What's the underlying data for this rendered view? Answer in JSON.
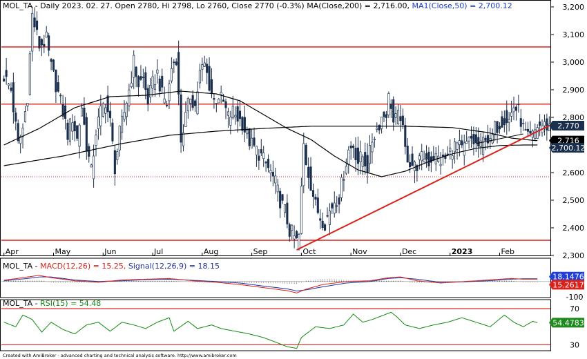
{
  "header": {
    "ticker": "MOL_TA",
    "text": "MOL_TA - Daily 2023. 02. 27. Open 2780, Hi 2798, Lo 2760, Close 2770 (-0.3%) MA(Close,200) = 2,716.00, ",
    "ma50_text": "MA1(Close,50) = 2,700.12"
  },
  "macd_header": {
    "prefix": "MOL_TA - ",
    "macd": "MACD(12,26) = 15.25, ",
    "signal": "Signal(12,26,9) = 18.15"
  },
  "rsi_header": {
    "prefix": "MOL_TA - ",
    "rsi": "RSI(15) = 54.48"
  },
  "footer": "Created with AmiBroker - advanced charting and technical analysis software. http://www.amibroker.com",
  "badges": {
    "close": "2,770",
    "ma200": "2,716",
    "ma50": "2,700.12",
    "signal": "18.1476",
    "macd": "15.2617",
    "rsi": "54.4783"
  },
  "colors": {
    "price": "#1b2f4e",
    "resistance": "#d9221b",
    "ma": "#000000",
    "macd": "#d9221b",
    "signal": "#2030a0",
    "rsi": "#118a11",
    "badge_dark": "#1b2f4e",
    "badge_blue": "#1f3fd8",
    "badge_red": "#d9221b",
    "badge_green": "#1c8a1c"
  },
  "chart_data": [
    {
      "type": "candlestick",
      "title": "MOL_TA - Daily",
      "ylim": [
        2300,
        3220
      ],
      "y_ticks": [
        {
          "value": 3200,
          "label": "3,200"
        },
        {
          "value": 3100,
          "label": "3,100"
        },
        {
          "value": 3000,
          "label": "3,000"
        },
        {
          "value": 2900,
          "label": "2,900"
        },
        {
          "value": 2800,
          "label": "2,800"
        },
        {
          "value": 2700,
          "label": "2,700"
        },
        {
          "value": 2600,
          "label": "2,600"
        },
        {
          "value": 2500,
          "label": "2,500"
        },
        {
          "value": 2400,
          "label": "2,400"
        },
        {
          "value": 2300,
          "label": "2,300"
        }
      ],
      "x_labels": [
        {
          "i": 0,
          "label": "Apr",
          "bold": false
        },
        {
          "i": 21,
          "label": "May",
          "bold": false
        },
        {
          "i": 42,
          "label": "Jun",
          "bold": false
        },
        {
          "i": 63,
          "label": "Jul",
          "bold": false
        },
        {
          "i": 84,
          "label": "Aug",
          "bold": false
        },
        {
          "i": 105,
          "label": "Sep",
          "bold": false
        },
        {
          "i": 126,
          "label": "Oct",
          "bold": false
        },
        {
          "i": 147,
          "label": "Nov",
          "bold": false
        },
        {
          "i": 168,
          "label": "Dec",
          "bold": false
        },
        {
          "i": 189,
          "label": "2023",
          "bold": true
        },
        {
          "i": 210,
          "label": "Feb",
          "bold": false
        }
      ],
      "n_bars": 232,
      "close_anchors": [
        [
          0,
          2950
        ],
        [
          3,
          2900
        ],
        [
          6,
          2700
        ],
        [
          8,
          2760
        ],
        [
          10,
          2880
        ],
        [
          12,
          3170
        ],
        [
          15,
          3060
        ],
        [
          18,
          3080
        ],
        [
          20,
          2980
        ],
        [
          22,
          2920
        ],
        [
          25,
          2820
        ],
        [
          27,
          2740
        ],
        [
          29,
          2800
        ],
        [
          31,
          2720
        ],
        [
          33,
          2840
        ],
        [
          35,
          2700
        ],
        [
          37,
          2600
        ],
        [
          39,
          2750
        ],
        [
          41,
          2820
        ],
        [
          43,
          2860
        ],
        [
          45,
          2780
        ],
        [
          47,
          2620
        ],
        [
          49,
          2740
        ],
        [
          51,
          2820
        ],
        [
          53,
          2900
        ],
        [
          55,
          3000
        ],
        [
          57,
          2920
        ],
        [
          59,
          2940
        ],
        [
          61,
          2860
        ],
        [
          63,
          2920
        ],
        [
          65,
          2960
        ],
        [
          67,
          2880
        ],
        [
          69,
          2850
        ],
        [
          71,
          2980
        ],
        [
          73,
          3020
        ],
        [
          75,
          2720
        ],
        [
          77,
          2800
        ],
        [
          79,
          2880
        ],
        [
          81,
          2840
        ],
        [
          83,
          2960
        ],
        [
          85,
          2990
        ],
        [
          87,
          2920
        ],
        [
          89,
          2860
        ],
        [
          91,
          2880
        ],
        [
          93,
          2850
        ],
        [
          95,
          2800
        ],
        [
          97,
          2820
        ],
        [
          99,
          2800
        ],
        [
          101,
          2780
        ],
        [
          103,
          2730
        ],
        [
          105,
          2700
        ],
        [
          107,
          2680
        ],
        [
          109,
          2660
        ],
        [
          111,
          2630
        ],
        [
          113,
          2600
        ],
        [
          115,
          2560
        ],
        [
          117,
          2500
        ],
        [
          119,
          2460
        ],
        [
          121,
          2390
        ],
        [
          122,
          2380
        ],
        [
          124,
          2350
        ],
        [
          125,
          2370
        ],
        [
          127,
          2700
        ],
        [
          128,
          2640
        ],
        [
          130,
          2560
        ],
        [
          132,
          2480
        ],
        [
          134,
          2440
        ],
        [
          136,
          2420
        ],
        [
          138,
          2460
        ],
        [
          140,
          2500
        ],
        [
          142,
          2510
        ],
        [
          144,
          2600
        ],
        [
          146,
          2680
        ],
        [
          148,
          2700
        ],
        [
          150,
          2640
        ],
        [
          152,
          2660
        ],
        [
          154,
          2620
        ],
        [
          156,
          2720
        ],
        [
          158,
          2760
        ],
        [
          160,
          2800
        ],
        [
          162,
          2820
        ],
        [
          163,
          2870
        ],
        [
          164,
          2850
        ],
        [
          165,
          2780
        ],
        [
          166,
          2790
        ],
        [
          168,
          2810
        ],
        [
          170,
          2680
        ],
        [
          172,
          2640
        ],
        [
          174,
          2620
        ],
        [
          176,
          2640
        ],
        [
          178,
          2660
        ],
        [
          180,
          2640
        ],
        [
          182,
          2660
        ],
        [
          184,
          2650
        ],
        [
          186,
          2640
        ],
        [
          188,
          2660
        ],
        [
          190,
          2690
        ],
        [
          192,
          2700
        ],
        [
          194,
          2680
        ],
        [
          196,
          2700
        ],
        [
          198,
          2720
        ],
        [
          200,
          2700
        ],
        [
          202,
          2690
        ],
        [
          204,
          2740
        ],
        [
          206,
          2700
        ],
        [
          208,
          2760
        ],
        [
          210,
          2780
        ],
        [
          212,
          2800
        ],
        [
          214,
          2790
        ],
        [
          216,
          2840
        ],
        [
          218,
          2820
        ],
        [
          220,
          2760
        ],
        [
          222,
          2720
        ],
        [
          224,
          2730
        ],
        [
          226,
          2770
        ],
        [
          231,
          2770
        ]
      ],
      "ma200_anchors": [
        [
          0,
          2625
        ],
        [
          25,
          2660
        ],
        [
          50,
          2705
        ],
        [
          70,
          2735
        ],
        [
          90,
          2750
        ],
        [
          110,
          2760
        ],
        [
          130,
          2768
        ],
        [
          150,
          2768
        ],
        [
          170,
          2768
        ],
        [
          190,
          2763
        ],
        [
          205,
          2745
        ],
        [
          215,
          2725
        ],
        [
          225,
          2716
        ],
        [
          231,
          2716
        ]
      ],
      "ma50_anchors": [
        [
          0,
          2700
        ],
        [
          15,
          2760
        ],
        [
          30,
          2835
        ],
        [
          45,
          2875
        ],
        [
          60,
          2880
        ],
        [
          75,
          2895
        ],
        [
          90,
          2885
        ],
        [
          100,
          2860
        ],
        [
          110,
          2810
        ],
        [
          120,
          2760
        ],
        [
          130,
          2720
        ],
        [
          140,
          2660
        ],
        [
          150,
          2610
        ],
        [
          160,
          2585
        ],
        [
          170,
          2605
        ],
        [
          180,
          2640
        ],
        [
          190,
          2668
        ],
        [
          200,
          2688
        ],
        [
          210,
          2698
        ],
        [
          220,
          2700
        ],
        [
          231,
          2700
        ]
      ],
      "resistance_lines": [
        3055,
        2848
      ],
      "support_lines": [
        2355
      ],
      "dotted_line": 2585,
      "trendline": [
        [
          124,
          2320
        ],
        [
          231,
          2770
        ]
      ],
      "black_trendline": [
        [
          200,
          2705
        ],
        [
          220,
          2740
        ]
      ]
    },
    {
      "type": "line",
      "title": "MACD(12,26)",
      "ylim": [
        -105,
        130
      ],
      "y_ticks": [
        {
          "value": 0,
          "label": "0"
        },
        {
          "value": -100,
          "label": "-100"
        }
      ],
      "series": [
        {
          "name": "MACD(12,26)",
          "anchors": [
            [
              0,
              8
            ],
            [
              10,
              30
            ],
            [
              15,
              40
            ],
            [
              20,
              25
            ],
            [
              30,
              5
            ],
            [
              40,
              -5
            ],
            [
              50,
              10
            ],
            [
              60,
              15
            ],
            [
              70,
              20
            ],
            [
              80,
              5
            ],
            [
              90,
              -5
            ],
            [
              100,
              -20
            ],
            [
              110,
              -40
            ],
            [
              120,
              -60
            ],
            [
              124,
              -75
            ],
            [
              128,
              -50
            ],
            [
              135,
              -20
            ],
            [
              145,
              0
            ],
            [
              155,
              5
            ],
            [
              163,
              25
            ],
            [
              168,
              30
            ],
            [
              175,
              5
            ],
            [
              185,
              -10
            ],
            [
              195,
              0
            ],
            [
              205,
              10
            ],
            [
              215,
              20
            ],
            [
              220,
              15
            ],
            [
              226,
              15.25
            ]
          ]
        },
        {
          "name": "Signal(12,26,9)",
          "anchors": [
            [
              0,
              5
            ],
            [
              10,
              20
            ],
            [
              15,
              30
            ],
            [
              20,
              30
            ],
            [
              30,
              10
            ],
            [
              40,
              0
            ],
            [
              50,
              5
            ],
            [
              60,
              12
            ],
            [
              70,
              15
            ],
            [
              80,
              8
            ],
            [
              90,
              0
            ],
            [
              100,
              -10
            ],
            [
              110,
              -30
            ],
            [
              120,
              -48
            ],
            [
              124,
              -62
            ],
            [
              128,
              -55
            ],
            [
              135,
              -35
            ],
            [
              145,
              -10
            ],
            [
              155,
              0
            ],
            [
              163,
              20
            ],
            [
              168,
              25
            ],
            [
              175,
              15
            ],
            [
              185,
              -5
            ],
            [
              195,
              -2
            ],
            [
              205,
              5
            ],
            [
              215,
              15
            ],
            [
              220,
              18
            ],
            [
              226,
              18.15
            ]
          ]
        }
      ],
      "last_values": {
        "signal": 18.1476,
        "macd": 15.2617
      }
    },
    {
      "type": "line",
      "title": "RSI(15)",
      "ylim": [
        25,
        80
      ],
      "y_ticks": [
        {
          "value": 70,
          "label": "70"
        },
        {
          "value": 30,
          "label": "30"
        }
      ],
      "hlines": [
        70,
        30
      ],
      "series": [
        {
          "name": "RSI(15)",
          "anchors": [
            [
              0,
              55
            ],
            [
              5,
              50
            ],
            [
              8,
              63
            ],
            [
              12,
              58
            ],
            [
              16,
              44
            ],
            [
              20,
              55
            ],
            [
              25,
              47
            ],
            [
              30,
              42
            ],
            [
              35,
              52
            ],
            [
              40,
              55
            ],
            [
              45,
              45
            ],
            [
              50,
              55
            ],
            [
              55,
              52
            ],
            [
              60,
              48
            ],
            [
              65,
              55
            ],
            [
              70,
              60
            ],
            [
              72,
              45
            ],
            [
              78,
              56
            ],
            [
              82,
              48
            ],
            [
              88,
              52
            ],
            [
              92,
              48
            ],
            [
              98,
              45
            ],
            [
              104,
              42
            ],
            [
              110,
              38
            ],
            [
              116,
              32
            ],
            [
              120,
              28
            ],
            [
              124,
              26
            ],
            [
              126,
              38
            ],
            [
              128,
              42
            ],
            [
              132,
              50
            ],
            [
              138,
              48
            ],
            [
              144,
              52
            ],
            [
              148,
              64
            ],
            [
              152,
              55
            ],
            [
              156,
              58
            ],
            [
              160,
              62
            ],
            [
              164,
              66
            ],
            [
              166,
              62
            ],
            [
              170,
              52
            ],
            [
              176,
              48
            ],
            [
              182,
              52
            ],
            [
              188,
              55
            ],
            [
              194,
              60
            ],
            [
              200,
              55
            ],
            [
              206,
              50
            ],
            [
              212,
              63
            ],
            [
              216,
              55
            ],
            [
              220,
              50
            ],
            [
              224,
              56
            ],
            [
              226,
              54.48
            ]
          ]
        }
      ],
      "last_value": 54.4783
    }
  ]
}
